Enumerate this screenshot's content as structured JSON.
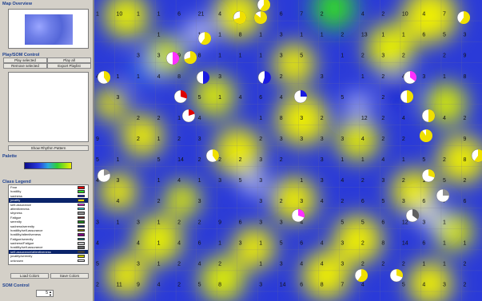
{
  "sidebar": {
    "map_overview_title": "Map Overview",
    "control_title": "Play/SOM Control",
    "buttons": {
      "play_selected": "Play selected",
      "play_all": "Play all",
      "remove_selected": "Remove selected",
      "export_playlist": "Export Playlist",
      "show_rhythm": "Show Rhythm Pattern"
    },
    "palette_title": "Palette",
    "class_legend_title": "Class Legend",
    "legend": [
      {
        "label": "Fear",
        "color": "#e00000"
      },
      {
        "label": "hostility",
        "color": "#2ad12a"
      },
      {
        "label": "sadness",
        "color": "#1a1ae0"
      },
      {
        "label": "jovality",
        "color": "#f0e000"
      },
      {
        "label": "self-assurance",
        "color": "#ff30ff"
      },
      {
        "label": "attentiveness",
        "color": "#30e8e8"
      },
      {
        "label": "shyness",
        "color": "#909090"
      },
      {
        "label": "Fatigue",
        "color": "#7a2a2a"
      },
      {
        "label": "serenity",
        "color": "#208020"
      },
      {
        "label": "sadness/serenity",
        "color": "#203080"
      },
      {
        "label": "hostility/self-assurance",
        "color": "#808000"
      },
      {
        "label": "hostility/attentiveness",
        "color": "#800080"
      },
      {
        "label": "Fatigue/serenity",
        "color": "#008080"
      },
      {
        "label": "sadness/Fatigue",
        "color": "#c0c0c0"
      },
      {
        "label": "hostility/self-assurance",
        "color": "#606060"
      },
      {
        "label": "self-assurance/attentiveness",
        "color": "#404040"
      },
      {
        "label": "jovality/serenity",
        "color": "#c8c800"
      },
      {
        "label": "unknown",
        "color": "#ffffff"
      }
    ],
    "selected_legend_indices": [
      3,
      15
    ],
    "load_colors": "Load Colors",
    "save_colors": "Save Colors",
    "som_control_title": "SOM Control",
    "som_value": "5"
  },
  "map": {
    "rows": [
      [
        "1",
        "10",
        "1",
        "1",
        "6",
        "21",
        "4",
        "5",
        "3",
        "6",
        "7",
        "2",
        "",
        "4",
        "2",
        "10",
        "4",
        "7",
        "1"
      ],
      [
        "",
        "",
        "",
        "1",
        "",
        "1",
        "1",
        "8",
        "1",
        "3",
        "1",
        "1",
        "2",
        "13",
        "1",
        "1",
        "6",
        "5",
        "3"
      ],
      [
        "",
        "",
        "3",
        "3",
        "9",
        "8",
        "1",
        "1",
        "1",
        "3",
        "5",
        "",
        "1",
        "2",
        "3",
        "2",
        "",
        "2",
        "9"
      ],
      [
        "4",
        "1",
        "1",
        "4",
        "8",
        "6",
        "3",
        "",
        "1",
        "2",
        "",
        "3",
        "",
        "1",
        "2",
        "4",
        "3",
        "1",
        "8"
      ],
      [
        "",
        "3",
        "",
        "",
        "4",
        "5",
        "1",
        "4",
        "6",
        "4",
        "1",
        "",
        "5",
        "",
        "2",
        "1",
        "",
        "",
        ""
      ],
      [
        "",
        "",
        "2",
        "2",
        "1",
        "4",
        "",
        "",
        "1",
        "8",
        "3",
        "2",
        "",
        "12",
        "2",
        "4",
        "1",
        "4",
        "2"
      ],
      [
        "9",
        "",
        "2",
        "1",
        "2",
        "3",
        "",
        "",
        "2",
        "3",
        "3",
        "3",
        "3",
        "4",
        "2",
        "2",
        "2",
        "",
        "9"
      ],
      [
        "5",
        "1",
        "",
        "5",
        "14",
        "2",
        "2",
        "2",
        "3",
        "2",
        "",
        "3",
        "1",
        "1",
        "4",
        "1",
        "5",
        "2",
        "8"
      ],
      [
        "4",
        "3",
        "",
        "1",
        "4",
        "1",
        "3",
        "5",
        "3",
        "",
        "1",
        "3",
        "4",
        "2",
        "3",
        "2",
        "1",
        "5",
        "2"
      ],
      [
        "",
        "4",
        "",
        "2",
        "",
        "3",
        "",
        "",
        "3",
        "2",
        "3",
        "4",
        "2",
        "6",
        "5",
        "3",
        "6",
        "7",
        "6"
      ],
      [
        "3",
        "1",
        "3",
        "1",
        "2",
        "2",
        "9",
        "6",
        "3",
        "3",
        "4",
        "",
        "5",
        "5",
        "6",
        "12",
        "3",
        "1",
        ""
      ],
      [
        "4",
        "",
        "4",
        "1",
        "4",
        "6",
        "1",
        "3",
        "1",
        "5",
        "6",
        "4",
        "3",
        "2",
        "8",
        "14",
        "6",
        "1",
        "1"
      ],
      [
        "5",
        "",
        "3",
        "1",
        "2",
        "4",
        "2",
        "",
        "1",
        "3",
        "4",
        "4",
        "3",
        "2",
        "2",
        "2",
        "1",
        "1",
        "2"
      ],
      [
        "2",
        "11",
        "9",
        "4",
        "2",
        "5",
        "8",
        "",
        "3",
        "14",
        "6",
        "8",
        "7",
        "4",
        "",
        "5",
        "4",
        "3",
        "2"
      ]
    ]
  }
}
